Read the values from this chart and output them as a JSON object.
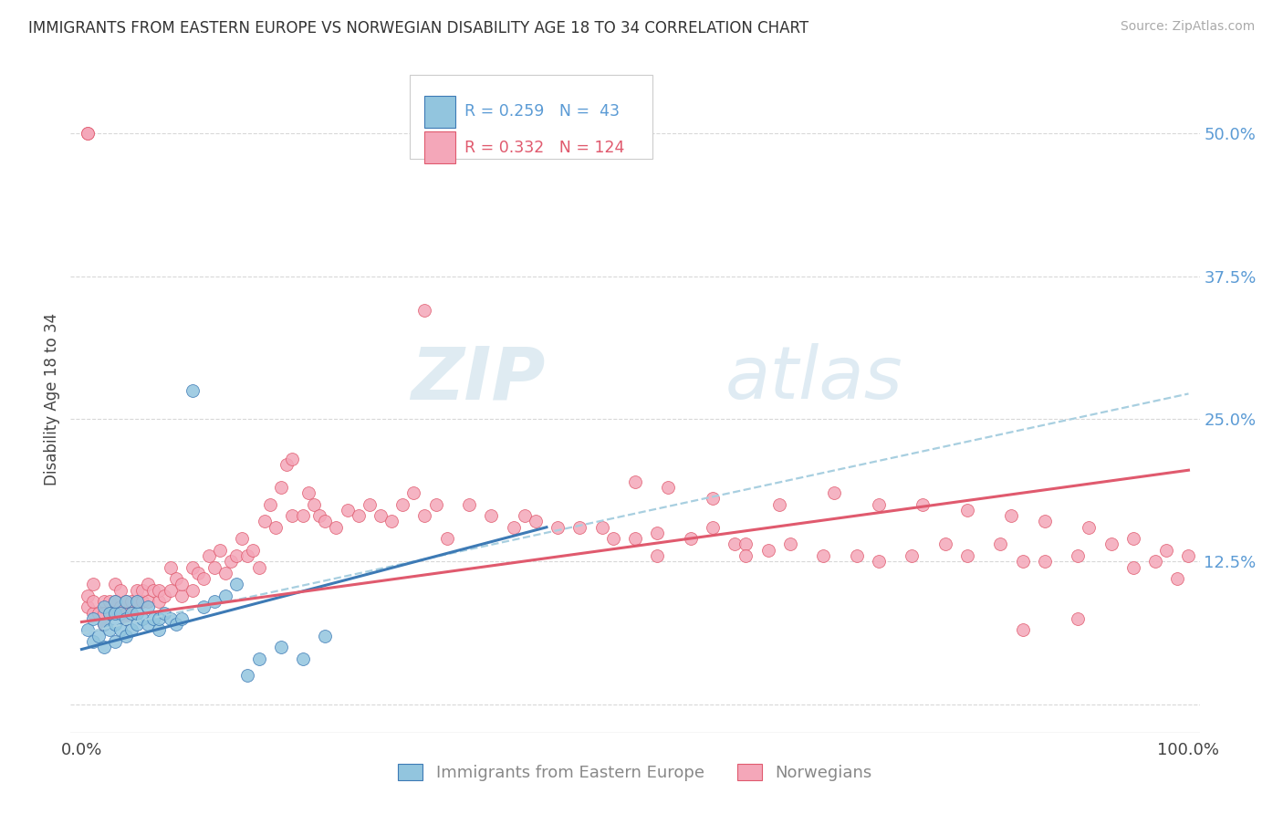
{
  "title": "IMMIGRANTS FROM EASTERN EUROPE VS NORWEGIAN DISABILITY AGE 18 TO 34 CORRELATION CHART",
  "source": "Source: ZipAtlas.com",
  "ylabel": "Disability Age 18 to 34",
  "xlim": [
    -0.01,
    1.01
  ],
  "ylim": [
    -0.025,
    0.56
  ],
  "yticks": [
    0.0,
    0.125,
    0.25,
    0.375,
    0.5
  ],
  "ytick_labels": [
    "",
    "12.5%",
    "25.0%",
    "37.5%",
    "50.0%"
  ],
  "xtick_labels": [
    "0.0%",
    "100.0%"
  ],
  "color_blue": "#92c5de",
  "color_pink": "#f4a7b9",
  "color_blue_line": "#3d7ab5",
  "color_pink_line": "#e05a6e",
  "color_blue_dashed": "#a8cfe0",
  "watermark_color": "#cde8f5",
  "background_color": "#ffffff",
  "grid_color": "#d8d8d8",
  "blue_line_x0": 0.0,
  "blue_line_x1": 0.42,
  "blue_line_y0": 0.048,
  "blue_line_y1": 0.155,
  "pink_line_x0": 0.0,
  "pink_line_x1": 1.0,
  "pink_line_y0": 0.072,
  "pink_line_y1": 0.205,
  "dashed_line_x0": 0.0,
  "dashed_line_x1": 1.0,
  "dashed_line_y0": 0.062,
  "dashed_line_y1": 0.272,
  "blue_scatter_x": [
    0.005,
    0.01,
    0.01,
    0.015,
    0.02,
    0.02,
    0.02,
    0.025,
    0.025,
    0.03,
    0.03,
    0.03,
    0.03,
    0.035,
    0.035,
    0.04,
    0.04,
    0.04,
    0.045,
    0.045,
    0.05,
    0.05,
    0.05,
    0.055,
    0.06,
    0.06,
    0.065,
    0.07,
    0.07,
    0.075,
    0.08,
    0.085,
    0.09,
    0.1,
    0.11,
    0.12,
    0.13,
    0.14,
    0.15,
    0.16,
    0.18,
    0.2,
    0.22
  ],
  "blue_scatter_y": [
    0.065,
    0.055,
    0.075,
    0.06,
    0.05,
    0.07,
    0.085,
    0.065,
    0.08,
    0.055,
    0.07,
    0.08,
    0.09,
    0.065,
    0.08,
    0.06,
    0.075,
    0.09,
    0.065,
    0.08,
    0.07,
    0.08,
    0.09,
    0.075,
    0.07,
    0.085,
    0.075,
    0.065,
    0.075,
    0.08,
    0.075,
    0.07,
    0.075,
    0.275,
    0.085,
    0.09,
    0.095,
    0.105,
    0.025,
    0.04,
    0.05,
    0.04,
    0.06
  ],
  "pink_scatter_x": [
    0.005,
    0.005,
    0.01,
    0.01,
    0.01,
    0.015,
    0.02,
    0.02,
    0.02,
    0.025,
    0.025,
    0.03,
    0.03,
    0.03,
    0.035,
    0.035,
    0.04,
    0.04,
    0.04,
    0.045,
    0.045,
    0.05,
    0.05,
    0.055,
    0.055,
    0.06,
    0.06,
    0.065,
    0.07,
    0.07,
    0.075,
    0.08,
    0.08,
    0.085,
    0.09,
    0.09,
    0.1,
    0.1,
    0.105,
    0.11,
    0.115,
    0.12,
    0.125,
    0.13,
    0.135,
    0.14,
    0.145,
    0.15,
    0.155,
    0.16,
    0.165,
    0.17,
    0.175,
    0.18,
    0.185,
    0.19,
    0.19,
    0.2,
    0.205,
    0.21,
    0.215,
    0.22,
    0.23,
    0.24,
    0.25,
    0.26,
    0.27,
    0.28,
    0.29,
    0.3,
    0.31,
    0.32,
    0.33,
    0.35,
    0.37,
    0.39,
    0.4,
    0.41,
    0.43,
    0.45,
    0.47,
    0.48,
    0.5,
    0.52,
    0.55,
    0.57,
    0.59,
    0.6,
    0.62,
    0.64,
    0.67,
    0.7,
    0.72,
    0.75,
    0.78,
    0.8,
    0.83,
    0.85,
    0.87,
    0.9,
    0.93,
    0.95,
    0.97,
    0.99,
    0.005,
    0.005,
    0.52,
    0.6,
    0.85,
    0.9,
    0.5,
    0.53,
    0.57,
    0.63,
    0.68,
    0.72,
    0.76,
    0.8,
    0.84,
    0.87,
    0.91,
    0.95,
    0.98,
    1.0
  ],
  "pink_scatter_y": [
    0.085,
    0.095,
    0.08,
    0.09,
    0.105,
    0.08,
    0.09,
    0.08,
    0.07,
    0.09,
    0.08,
    0.09,
    0.08,
    0.105,
    0.1,
    0.085,
    0.09,
    0.08,
    0.075,
    0.09,
    0.08,
    0.09,
    0.1,
    0.09,
    0.1,
    0.09,
    0.105,
    0.1,
    0.09,
    0.1,
    0.095,
    0.1,
    0.12,
    0.11,
    0.095,
    0.105,
    0.1,
    0.12,
    0.115,
    0.11,
    0.13,
    0.12,
    0.135,
    0.115,
    0.125,
    0.13,
    0.145,
    0.13,
    0.135,
    0.12,
    0.16,
    0.175,
    0.155,
    0.19,
    0.21,
    0.165,
    0.215,
    0.165,
    0.185,
    0.175,
    0.165,
    0.16,
    0.155,
    0.17,
    0.165,
    0.175,
    0.165,
    0.16,
    0.175,
    0.185,
    0.165,
    0.175,
    0.145,
    0.175,
    0.165,
    0.155,
    0.165,
    0.16,
    0.155,
    0.155,
    0.155,
    0.145,
    0.145,
    0.15,
    0.145,
    0.155,
    0.14,
    0.14,
    0.135,
    0.14,
    0.13,
    0.13,
    0.125,
    0.13,
    0.14,
    0.13,
    0.14,
    0.125,
    0.125,
    0.13,
    0.14,
    0.12,
    0.125,
    0.11,
    0.5,
    0.5,
    0.13,
    0.13,
    0.065,
    0.075,
    0.195,
    0.19,
    0.18,
    0.175,
    0.185,
    0.175,
    0.175,
    0.17,
    0.165,
    0.16,
    0.155,
    0.145,
    0.135,
    0.13
  ],
  "pink_outlier_x": [
    0.31
  ],
  "pink_outlier_y": [
    0.345
  ]
}
